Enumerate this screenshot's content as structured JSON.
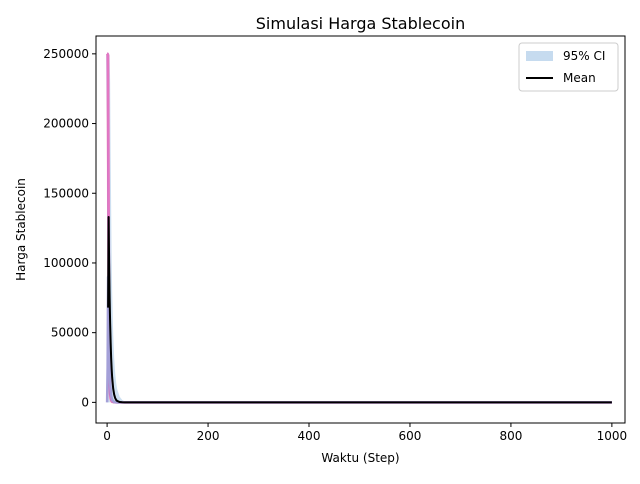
{
  "chart_data": {
    "type": "line",
    "title": "Simulasi Harga Stablecoin",
    "xlabel": "Waktu (Step)",
    "ylabel": "Harga Stablecoin",
    "xlim": [
      -22,
      1026
    ],
    "ylim": [
      -14800,
      262800
    ],
    "grid": false,
    "legend_position": "top-right",
    "x_ticks": [
      0,
      200,
      400,
      600,
      800,
      1000
    ],
    "x_tick_labels": [
      "0",
      "200",
      "400",
      "600",
      "800",
      "1000"
    ],
    "y_ticks": [
      0,
      50000,
      100000,
      150000,
      200000,
      250000
    ],
    "y_tick_labels": [
      "0",
      "50000",
      "100000",
      "150000",
      "200000",
      "250000"
    ],
    "legend": [
      {
        "label": "95% CI",
        "kind": "band",
        "color": "#c6dbef"
      },
      {
        "label": "Mean",
        "kind": "line",
        "color": "#000000"
      }
    ],
    "series": [
      {
        "kind": "band",
        "color": "#c6dbef",
        "x": [
          0,
          1,
          2,
          3,
          4,
          5,
          6,
          7,
          8,
          9,
          10,
          12,
          14,
          16,
          18,
          20,
          25,
          30,
          35,
          40,
          50,
          70,
          100,
          200,
          400,
          600,
          800,
          1000
        ],
        "lower": [
          0,
          0,
          0,
          0,
          0,
          0,
          0,
          0,
          0,
          0,
          0,
          0,
          0,
          0,
          0,
          0,
          0,
          0,
          0,
          0,
          0,
          0,
          0,
          0,
          0,
          0,
          0,
          0
        ],
        "upper": [
          250000,
          250000,
          250000,
          250000,
          250000,
          249000,
          230000,
          180000,
          140000,
          105000,
          80000,
          50000,
          32000,
          21000,
          14000,
          9500,
          4000,
          1700,
          700,
          300,
          60,
          5,
          1,
          0,
          0,
          0,
          0,
          0
        ]
      },
      {
        "kind": "line",
        "color": "#ffb6c1",
        "x": [
          0,
          1,
          2,
          3,
          4,
          5,
          6,
          8,
          10,
          14,
          20,
          30,
          40,
          60,
          100,
          200,
          400,
          600,
          800,
          1000
        ],
        "y": [
          250000,
          249000,
          170000,
          60000,
          20000,
          8000,
          3500,
          1000,
          300,
          40,
          5,
          0,
          0,
          0,
          0,
          0,
          0,
          0,
          0,
          0
        ]
      },
      {
        "kind": "line",
        "color": "#bc6ec9",
        "x": [
          0,
          1,
          2,
          3,
          4,
          5,
          6,
          8,
          10,
          14,
          20,
          30,
          40,
          60,
          100,
          200,
          400,
          600,
          800,
          1000
        ],
        "y": [
          250000,
          250000,
          200000,
          90000,
          35000,
          14000,
          6000,
          1800,
          550,
          70,
          8,
          0,
          0,
          0,
          0,
          0,
          0,
          0,
          0,
          0
        ]
      },
      {
        "kind": "line",
        "color": "#e377c2",
        "x": [
          0,
          1,
          2,
          3,
          4,
          5,
          6,
          8,
          10,
          14,
          20,
          30,
          40,
          60,
          100,
          200,
          400,
          600,
          800,
          1000
        ],
        "y": [
          250000,
          250000,
          249000,
          150000,
          60000,
          25000,
          11000,
          3000,
          900,
          120,
          12,
          0,
          0,
          0,
          0,
          0,
          0,
          0,
          0,
          0
        ]
      },
      {
        "kind": "line",
        "color": "#a4a0d8",
        "x": [
          0,
          1,
          2,
          3,
          4,
          5,
          6,
          8,
          10,
          14,
          20,
          30,
          40,
          60,
          100,
          200,
          400,
          600,
          800,
          1000
        ],
        "y": [
          0,
          25000,
          90000,
          60000,
          40000,
          25000,
          14000,
          5000,
          1800,
          260,
          30,
          1,
          0,
          0,
          0,
          0,
          0,
          0,
          0,
          0
        ]
      },
      {
        "kind": "line",
        "color": "#000000",
        "name": "Mean",
        "x": [
          2,
          3,
          4,
          5,
          6,
          7,
          8,
          9,
          10,
          12,
          14,
          16,
          18,
          20,
          25,
          30,
          35,
          40,
          50,
          70,
          100,
          200,
          400,
          600,
          800,
          1000
        ],
        "y": [
          68000,
          133000,
          100000,
          75000,
          57000,
          43000,
          32000,
          24000,
          18000,
          10000,
          5600,
          3100,
          1700,
          1000,
          250,
          60,
          15,
          4,
          0,
          0,
          0,
          0,
          0,
          0,
          0,
          0
        ]
      }
    ]
  }
}
